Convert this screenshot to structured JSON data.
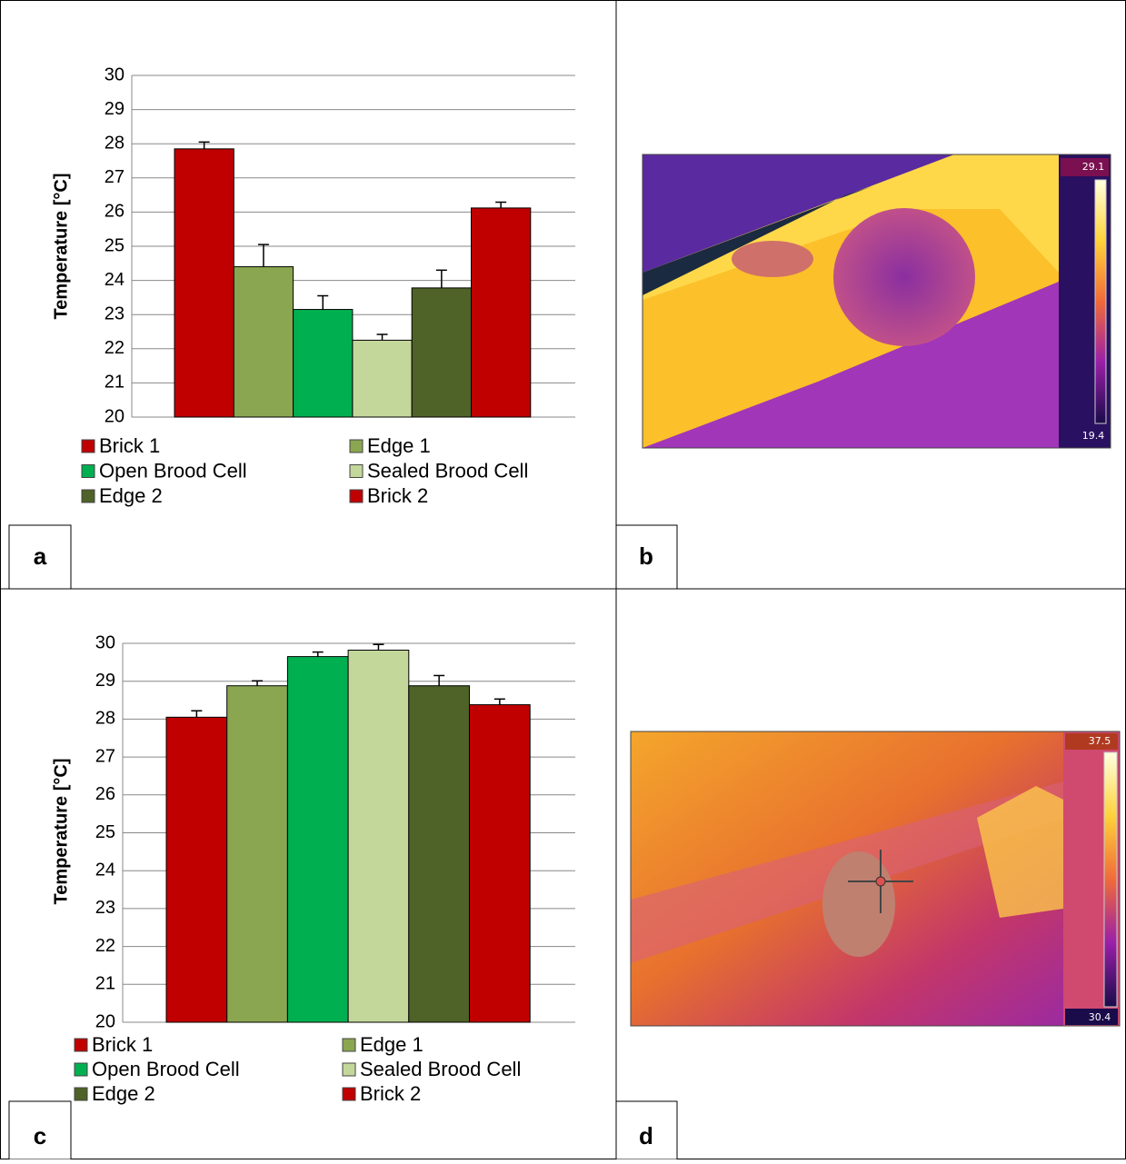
{
  "panel_labels": [
    "a",
    "b",
    "c",
    "d"
  ],
  "thermal_images": [
    {
      "scale_max": "29.1",
      "scale_min": "19.4"
    },
    {
      "scale_max": "37.5",
      "scale_min": "30.4"
    }
  ],
  "chart_data": [
    {
      "type": "bar",
      "y_label": "Temperature [°C]",
      "ylim": [
        20,
        30
      ],
      "yticks": [
        20,
        21,
        22,
        23,
        24,
        25,
        26,
        27,
        28,
        29,
        30
      ],
      "grid": true,
      "series": [
        {
          "name": "Brick 1",
          "color": "#c00000",
          "values": [
            27.85
          ],
          "errors": [
            0.2
          ]
        },
        {
          "name": "Edge 1",
          "color": "#8ba650",
          "values": [
            24.4
          ],
          "errors": [
            0.65
          ]
        },
        {
          "name": "Open Brood Cell",
          "color": "#00b050",
          "values": [
            23.15
          ],
          "errors": [
            0.4
          ]
        },
        {
          "name": "Sealed Brood Cell",
          "color": "#c4d79b",
          "values": [
            22.25
          ],
          "errors": [
            0.17
          ]
        },
        {
          "name": "Edge 2",
          "color": "#4f6228",
          "values": [
            23.78
          ],
          "errors": [
            0.52
          ]
        },
        {
          "name": "Brick 2",
          "color": "#c00000",
          "values": [
            26.12
          ],
          "errors": [
            0.17
          ]
        }
      ]
    },
    {
      "type": "bar",
      "y_label": "Temperature [°C]",
      "ylim": [
        20,
        30
      ],
      "yticks": [
        20,
        21,
        22,
        23,
        24,
        25,
        26,
        27,
        28,
        29,
        30
      ],
      "grid": true,
      "series": [
        {
          "name": "Brick 1",
          "color": "#c00000",
          "values": [
            28.05
          ],
          "errors": [
            0.17
          ]
        },
        {
          "name": "Edge 1",
          "color": "#8ba650",
          "values": [
            28.88
          ],
          "errors": [
            0.13
          ]
        },
        {
          "name": "Open Brood Cell",
          "color": "#00b050",
          "values": [
            29.65
          ],
          "errors": [
            0.12
          ]
        },
        {
          "name": "Sealed Brood Cell",
          "color": "#c4d79b",
          "values": [
            29.82
          ],
          "errors": [
            0.15
          ]
        },
        {
          "name": "Edge 2",
          "color": "#4f6228",
          "values": [
            28.88
          ],
          "errors": [
            0.27
          ]
        },
        {
          "name": "Brick 2",
          "color": "#c00000",
          "values": [
            28.38
          ],
          "errors": [
            0.15
          ]
        }
      ]
    }
  ]
}
